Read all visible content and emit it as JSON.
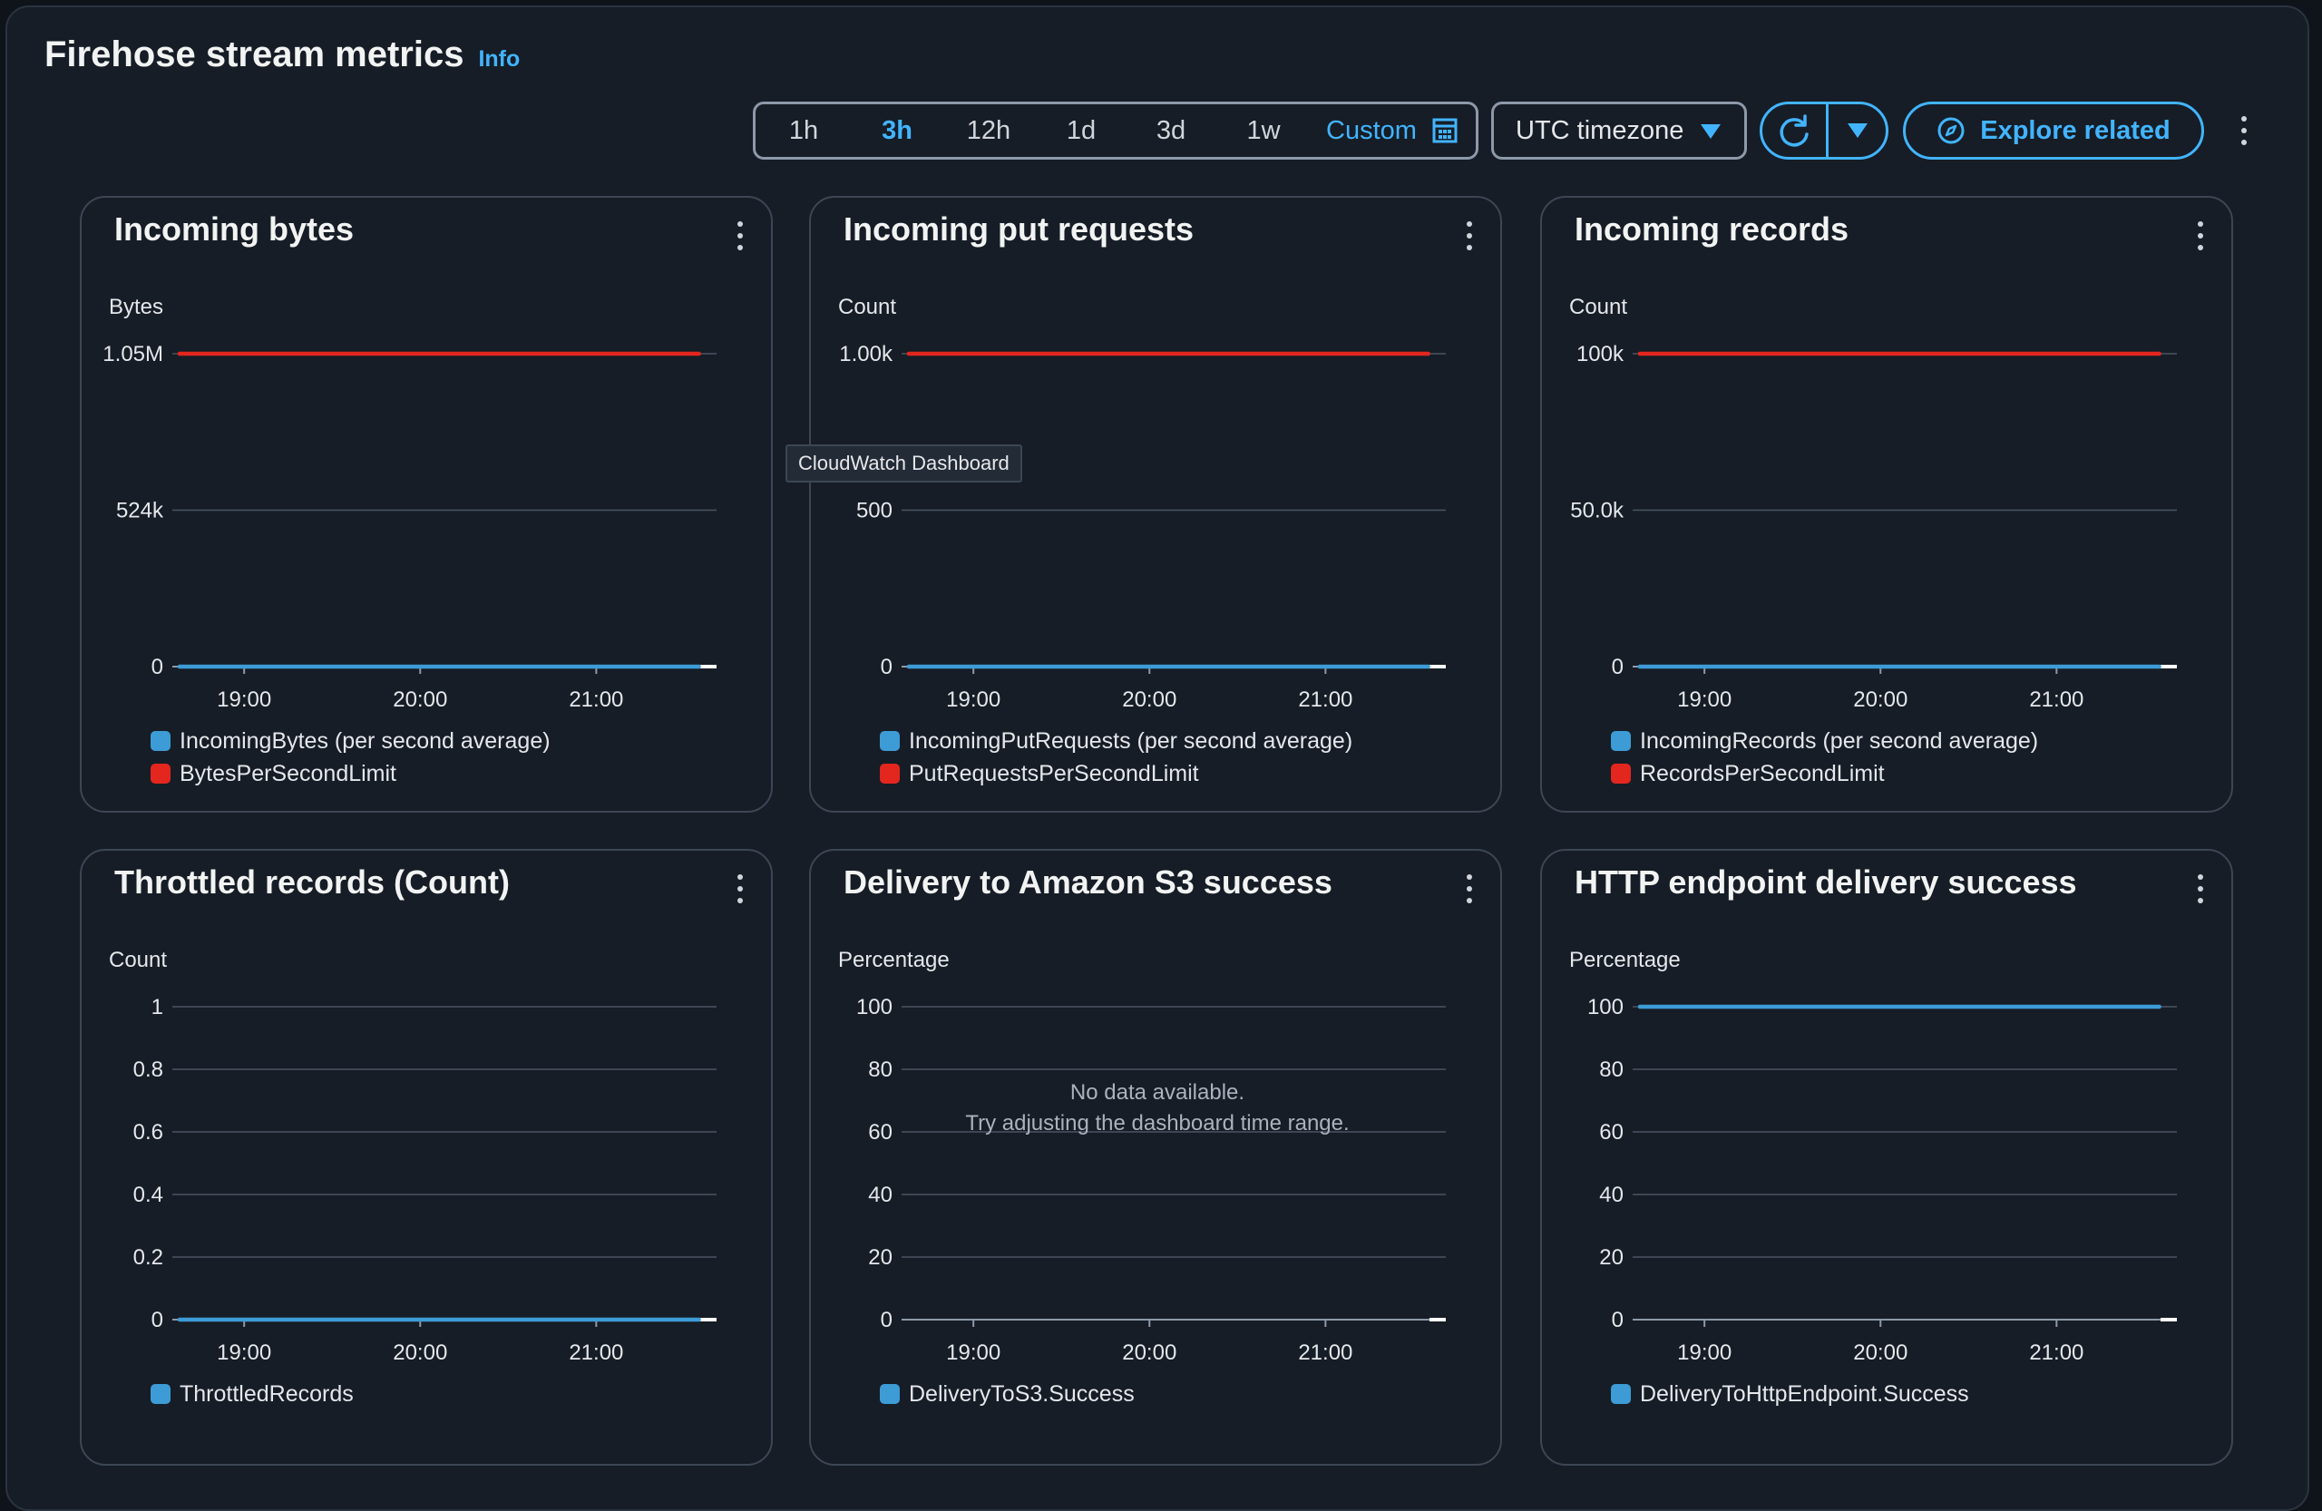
{
  "header": {
    "title": "Firehose stream metrics",
    "info": "Info"
  },
  "toolbar": {
    "ranges": [
      "1h",
      "3h",
      "12h",
      "1d",
      "3d",
      "1w"
    ],
    "active_range": "3h",
    "custom": "Custom",
    "timezone": "UTC timezone",
    "explore": "Explore related"
  },
  "tooltip": "CloudWatch Dashboard",
  "colors": {
    "accent": "#42b4ff",
    "series_blue": "#3d9bd6",
    "series_red": "#e3261e",
    "grid": "#4b5563"
  },
  "cards": [
    {
      "title": "Incoming bytes",
      "unit": "Bytes",
      "legend": [
        {
          "label": "IncomingBytes (per second average)",
          "color": "#3d9bd6"
        },
        {
          "label": "BytesPerSecondLimit",
          "color": "#e3261e"
        }
      ]
    },
    {
      "title": "Incoming put requests",
      "unit": "Count",
      "legend": [
        {
          "label": "IncomingPutRequests (per second average)",
          "color": "#3d9bd6"
        },
        {
          "label": "PutRequestsPerSecondLimit",
          "color": "#e3261e"
        }
      ]
    },
    {
      "title": "Incoming records",
      "unit": "Count",
      "legend": [
        {
          "label": "IncomingRecords (per second average)",
          "color": "#3d9bd6"
        },
        {
          "label": "RecordsPerSecondLimit",
          "color": "#e3261e"
        }
      ]
    },
    {
      "title": "Throttled records (Count)",
      "unit": "Count",
      "legend": [
        {
          "label": "ThrottledRecords",
          "color": "#3d9bd6"
        }
      ]
    },
    {
      "title": "Delivery to Amazon S3 success",
      "unit": "Percentage",
      "nodata": [
        "No data available.",
        "Try adjusting the dashboard time range."
      ],
      "legend": [
        {
          "label": "DeliveryToS3.Success",
          "color": "#3d9bd6"
        }
      ]
    },
    {
      "title": "HTTP endpoint delivery success",
      "unit": "Percentage",
      "legend": [
        {
          "label": "DeliveryToHttpEndpoint.Success",
          "color": "#3d9bd6"
        }
      ]
    }
  ],
  "chart_data": [
    {
      "type": "line",
      "title": "Incoming bytes",
      "ylabel": "Bytes",
      "y_ticks": [
        "0",
        "524k",
        "1.05M"
      ],
      "ylim": [
        0,
        1050000
      ],
      "x_ticks": [
        "19:00",
        "20:00",
        "21:00"
      ],
      "xlim": [
        "18:38",
        "21:41"
      ],
      "series": [
        {
          "name": "IncomingBytes (per second average)",
          "x": [
            "18:38",
            "21:35"
          ],
          "values": [
            0,
            0
          ]
        },
        {
          "name": "BytesPerSecondLimit",
          "x": [
            "18:38",
            "21:35"
          ],
          "values": [
            1050000,
            1050000
          ]
        }
      ]
    },
    {
      "type": "line",
      "title": "Incoming put requests",
      "ylabel": "Count",
      "y_ticks": [
        "0",
        "500",
        "1.00k"
      ],
      "ylim": [
        0,
        1000
      ],
      "x_ticks": [
        "19:00",
        "20:00",
        "21:00"
      ],
      "xlim": [
        "18:38",
        "21:41"
      ],
      "series": [
        {
          "name": "IncomingPutRequests (per second average)",
          "x": [
            "18:38",
            "21:35"
          ],
          "values": [
            0,
            0
          ]
        },
        {
          "name": "PutRequestsPerSecondLimit",
          "x": [
            "18:38",
            "21:35"
          ],
          "values": [
            1000,
            1000
          ]
        }
      ]
    },
    {
      "type": "line",
      "title": "Incoming records",
      "ylabel": "Count",
      "y_ticks": [
        "0",
        "50.0k",
        "100k"
      ],
      "ylim": [
        0,
        100000
      ],
      "x_ticks": [
        "19:00",
        "20:00",
        "21:00"
      ],
      "xlim": [
        "18:38",
        "21:41"
      ],
      "series": [
        {
          "name": "IncomingRecords (per second average)",
          "x": [
            "18:38",
            "21:35"
          ],
          "values": [
            0,
            0
          ]
        },
        {
          "name": "RecordsPerSecondLimit",
          "x": [
            "18:38",
            "21:35"
          ],
          "values": [
            100000,
            100000
          ]
        }
      ]
    },
    {
      "type": "line",
      "title": "Throttled records (Count)",
      "ylabel": "Count",
      "y_ticks": [
        "0",
        "0.2",
        "0.4",
        "0.6",
        "0.8",
        "1"
      ],
      "ylim": [
        0,
        1
      ],
      "x_ticks": [
        "19:00",
        "20:00",
        "21:00"
      ],
      "xlim": [
        "18:38",
        "21:41"
      ],
      "series": [
        {
          "name": "ThrottledRecords",
          "x": [
            "18:38",
            "21:35"
          ],
          "values": [
            0,
            0
          ]
        }
      ]
    },
    {
      "type": "line",
      "title": "Delivery to Amazon S3 success",
      "ylabel": "Percentage",
      "y_ticks": [
        "0",
        "20",
        "40",
        "60",
        "80",
        "100"
      ],
      "ylim": [
        0,
        100
      ],
      "x_ticks": [
        "19:00",
        "20:00",
        "21:00"
      ],
      "xlim": [
        "18:38",
        "21:41"
      ],
      "series": [
        {
          "name": "DeliveryToS3.Success",
          "x": [],
          "values": []
        }
      ]
    },
    {
      "type": "line",
      "title": "HTTP endpoint delivery success",
      "ylabel": "Percentage",
      "y_ticks": [
        "0",
        "20",
        "40",
        "60",
        "80",
        "100"
      ],
      "ylim": [
        0,
        100
      ],
      "x_ticks": [
        "19:00",
        "20:00",
        "21:00"
      ],
      "xlim": [
        "18:38",
        "21:41"
      ],
      "series": [
        {
          "name": "DeliveryToHttpEndpoint.Success",
          "x": [
            "18:38",
            "21:35"
          ],
          "values": [
            100,
            100
          ]
        }
      ]
    }
  ]
}
